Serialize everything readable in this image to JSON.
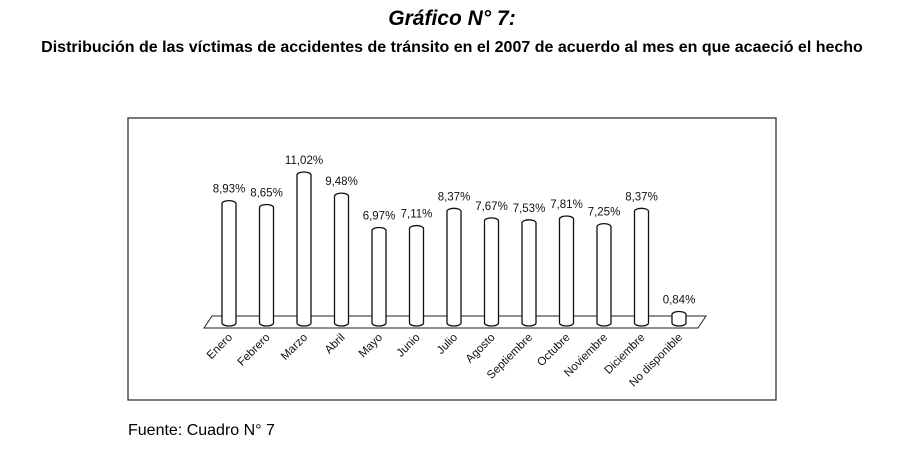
{
  "chart_data": {
    "type": "bar",
    "title": "Gráfico N° 7:",
    "subtitle": "Distribución de las víctimas de accidentes de tránsito en el 2007 de acuerdo al mes en que acaeció el hecho",
    "categories": [
      "Enero",
      "Febrero",
      "Marzo",
      "Abril",
      "Mayo",
      "Junio",
      "Julio",
      "Agosto",
      "Septiembre",
      "Octubre",
      "Noviembre",
      "Diciembre",
      "No disponible"
    ],
    "values": [
      8.93,
      8.65,
      11.02,
      9.48,
      6.97,
      7.11,
      8.37,
      7.67,
      7.53,
      7.81,
      7.25,
      8.37,
      0.84
    ],
    "value_labels": [
      "8,93%",
      "8,65%",
      "11,02%",
      "9,48%",
      "6,97%",
      "7,11%",
      "8,37%",
      "7,67%",
      "7,53%",
      "7,81%",
      "7,25%",
      "8,37%",
      "0,84%"
    ],
    "color": "#ffffff",
    "source": "Fuente: Cuadro N° 7"
  }
}
